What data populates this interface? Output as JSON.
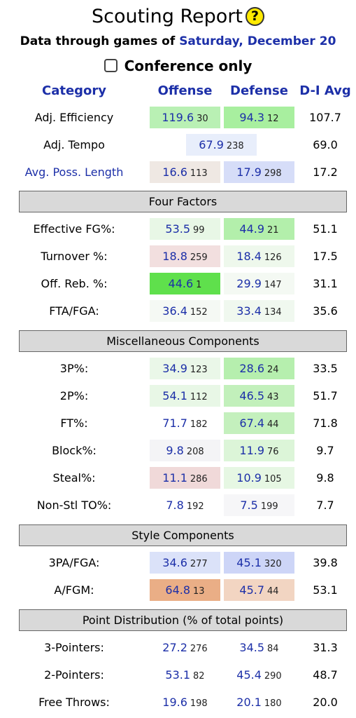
{
  "header": {
    "title": "Scouting Report",
    "help_symbol": "?",
    "subtitle_prefix": "Data through games of",
    "date": "Saturday, December 20",
    "conference_label": "Conference only",
    "conference_checked": false
  },
  "columns": {
    "category": "Category",
    "offense": "Offense",
    "defense": "Defense",
    "avg": "D-I Avg"
  },
  "colors": {
    "link_blue": "#1c2fa8",
    "section_gray": "#d9d9d9",
    "help_yellow": "#ffea00"
  },
  "overview": [
    {
      "label": "Adj. Efficiency",
      "off": "119.6",
      "off_rank": "30",
      "off_color": "#b9f0b4",
      "def": "94.3",
      "def_rank": "12",
      "def_color": "#a8ef9f",
      "avg": "107.7"
    },
    {
      "label": "Adj. Tempo",
      "tempo": "67.9",
      "tempo_rank": "238",
      "tempo_color": "#e8eefb",
      "avg": "69.0"
    },
    {
      "label": "Avg. Poss. Length",
      "link": true,
      "off": "16.6",
      "off_rank": "113",
      "off_color": "#efe8e3",
      "def": "17.9",
      "def_rank": "298",
      "def_color": "#d6ddf8",
      "avg": "17.2"
    }
  ],
  "sections": [
    {
      "title": "Four Factors",
      "rows": [
        {
          "label": "Effective FG%:",
          "off": "53.5",
          "off_rank": "99",
          "off_color": "#e8f7e6",
          "def": "44.9",
          "def_rank": "21",
          "def_color": "#b3efab",
          "avg": "51.1"
        },
        {
          "label": "Turnover %:",
          "off": "18.8",
          "off_rank": "259",
          "off_color": "#f2dfdf",
          "def": "18.4",
          "def_rank": "126",
          "def_color": "#eef8ec",
          "avg": "17.5"
        },
        {
          "label": "Off. Reb. %:",
          "off": "44.6",
          "off_rank": "1",
          "off_color": "#5fe04c",
          "def": "29.9",
          "def_rank": "147",
          "def_color": "#f4f9f3",
          "avg": "31.1"
        },
        {
          "label": "FTA/FGA:",
          "off": "36.4",
          "off_rank": "152",
          "off_color": "#f5f9f4",
          "def": "33.4",
          "def_rank": "134",
          "def_color": "#f0f8ef",
          "avg": "35.6"
        }
      ]
    },
    {
      "title": "Miscellaneous Components",
      "rows": [
        {
          "label": "3P%:",
          "off": "34.9",
          "off_rank": "123",
          "off_color": "#eaf7e8",
          "def": "28.6",
          "def_rank": "24",
          "def_color": "#b6efae",
          "avg": "33.5"
        },
        {
          "label": "2P%:",
          "off": "54.1",
          "off_rank": "112",
          "off_color": "#e8f7e6",
          "def": "46.5",
          "def_rank": "43",
          "def_color": "#c2f0bb",
          "avg": "51.7"
        },
        {
          "label": "FT%:",
          "off": "71.7",
          "off_rank": "182",
          "off_color": "#ffffff",
          "def": "67.4",
          "def_rank": "44",
          "def_color": "#c4f0bd",
          "avg": "71.8"
        },
        {
          "label": "Block%:",
          "off": "9.8",
          "off_rank": "208",
          "off_color": "#f4f4f6",
          "def": "11.9",
          "def_rank": "76",
          "def_color": "#dcf5d8",
          "avg": "9.7"
        },
        {
          "label": "Steal%:",
          "off": "11.1",
          "off_rank": "286",
          "off_color": "#f0d9d9",
          "def": "10.9",
          "def_rank": "105",
          "def_color": "#e6f7e3",
          "avg": "9.8"
        },
        {
          "label": "Non-Stl TO%:",
          "off": "7.8",
          "off_rank": "192",
          "off_color": "#ffffff",
          "def": "7.5",
          "def_rank": "199",
          "def_color": "#f6f6f8",
          "avg": "7.7"
        }
      ]
    },
    {
      "title": "Style Components",
      "rows": [
        {
          "label": "3PA/FGA:",
          "off": "34.6",
          "off_rank": "277",
          "off_color": "#dbe2f9",
          "def": "45.1",
          "def_rank": "320",
          "def_color": "#cdd5f7",
          "avg": "39.8"
        },
        {
          "label": "A/FGM:",
          "off": "64.8",
          "off_rank": "13",
          "off_color": "#eaae86",
          "def": "45.7",
          "def_rank": "44",
          "def_color": "#f2d5c2",
          "avg": "53.1"
        }
      ]
    },
    {
      "title": "Point Distribution (% of total points)",
      "rows": [
        {
          "label": "3-Pointers:",
          "off": "27.2",
          "off_rank": "276",
          "off_color": "#ffffff",
          "def": "34.5",
          "def_rank": "84",
          "def_color": "#ffffff",
          "avg": "31.3"
        },
        {
          "label": "2-Pointers:",
          "off": "53.1",
          "off_rank": "82",
          "off_color": "#ffffff",
          "def": "45.4",
          "def_rank": "290",
          "def_color": "#ffffff",
          "avg": "48.7"
        },
        {
          "label": "Free Throws:",
          "off": "19.6",
          "off_rank": "198",
          "off_color": "#ffffff",
          "def": "20.1",
          "def_rank": "180",
          "def_color": "#ffffff",
          "avg": "20.0"
        }
      ]
    }
  ]
}
